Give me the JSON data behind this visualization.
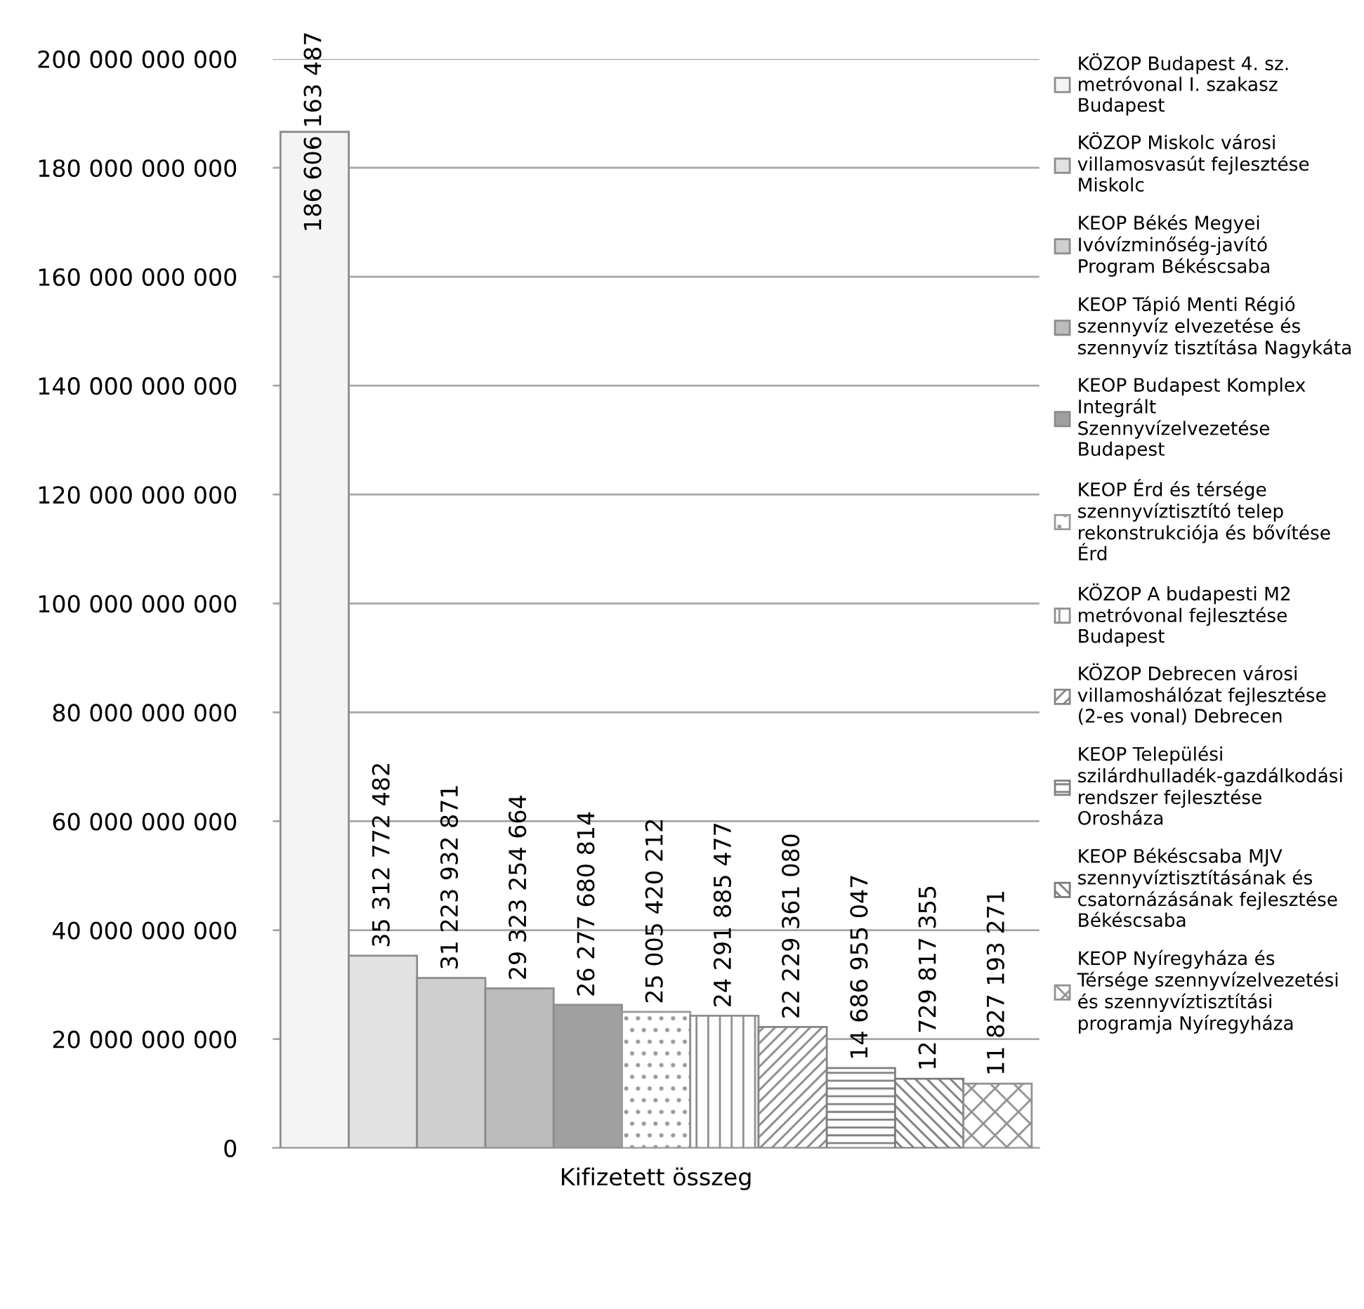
{
  "chart_data": {
    "type": "bar",
    "categories": [
      "Kifizetett összeg"
    ],
    "series": [
      {
        "name": "KÖZOP Budapest 4. sz.\nmetróvonal I. szakasz\nBudapest",
        "color": "#f4f4f4",
        "values": [
          186606163487
        ],
        "value_labels": [
          "186 606 163 487"
        ]
      },
      {
        "name": "KÖZOP Miskolc városi\nvillamosvasút fejlesztése\nMiskolc",
        "color": "#e2e2e2",
        "values": [
          35312772482
        ],
        "value_labels": [
          "35 312 772 482"
        ]
      },
      {
        "name": "KEOP Békés Megyei\nIvóvízminőség-javító\nProgram Békéscsaba",
        "color": "#cfcfcf",
        "values": [
          31223932871
        ],
        "value_labels": [
          "31 223 932 871"
        ]
      },
      {
        "name": "KEOP Tápió Menti Régió\nszennyvíz elvezetése és\nszennyvíz tisztítása Nagykáta",
        "color": "#bcbcbc",
        "values": [
          29323254664
        ],
        "value_labels": [
          "29 323 254 664"
        ]
      },
      {
        "name": "KEOP Budapest Komplex\nIntegrált\nSzennyvízelvezetése\nBudapest",
        "color": "#a0a0a0",
        "values": [
          26277680814
        ],
        "value_labels": [
          "26 277 680 814"
        ]
      },
      {
        "name": "KEOP Érd és térsége\nszennyvíztisztító telep\nrekonstrukciója és bővítése\nÉrd",
        "color": "#9a9a9a",
        "values": [
          25005420212
        ],
        "value_labels": [
          "25 005 420 212"
        ]
      },
      {
        "name": "KÖZOP A budapesti M2\nmetróvonal fejlesztése\nBudapest",
        "color": "#8e8e8e",
        "values": [
          24291885477
        ],
        "value_labels": [
          "24 291 885 477"
        ]
      },
      {
        "name": "KÖZOP Debrecen városi\nvillamoshálózat fejlesztése\n(2-es vonal) Debrecen",
        "color": "#858585",
        "values": [
          22229361080
        ],
        "value_labels": [
          "22 229 361 080"
        ]
      },
      {
        "name": "KEOP Települési\nszilárdhulladék-gazdálkodási\nrendszer fejlesztése\nOrosháza",
        "color": "#808080",
        "values": [
          14686955047
        ],
        "value_labels": [
          "14 686 955 047"
        ]
      },
      {
        "name": "KEOP Békéscsaba MJV\nszennyvíztisztításának és\ncsatornázásának fejlesztése\nBékéscsaba",
        "color": "#7a7a7a",
        "values": [
          12729817355
        ],
        "value_labels": [
          "12 729 817 355"
        ]
      },
      {
        "name": "KEOP Nyíregyháza és\nTérsége szennyvízelvezetési\nés szennyvíztisztítási\nprogramja Nyíregyháza",
        "color": "#909090",
        "values": [
          11827193271
        ],
        "value_labels": [
          "11 827 193 271"
        ]
      }
    ],
    "ylim": [
      0,
      200000000000
    ],
    "yticks": [
      {
        "value": 0,
        "label": "0"
      },
      {
        "value": 20000000000,
        "label": "20 000 000 000"
      },
      {
        "value": 40000000000,
        "label": "40 000 000 000"
      },
      {
        "value": 60000000000,
        "label": "60 000 000 000"
      },
      {
        "value": 80000000000,
        "label": "80 000 000 000"
      },
      {
        "value": 100000000000,
        "label": "100 000 000 000"
      },
      {
        "value": 120000000000,
        "label": "120 000 000 000"
      },
      {
        "value": 140000000000,
        "label": "140 000 000 000"
      },
      {
        "value": 160000000000,
        "label": "160 000 000 000"
      },
      {
        "value": 180000000000,
        "label": "180 000 000 000"
      },
      {
        "value": 200000000000,
        "label": "200 000 000 000"
      }
    ],
    "grid": "y",
    "legend": "right"
  }
}
